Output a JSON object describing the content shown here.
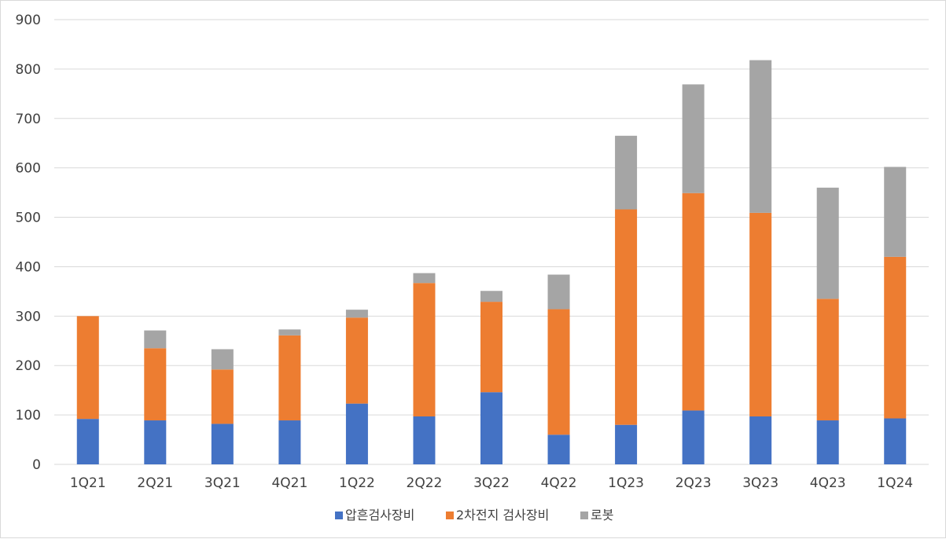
{
  "chart_data": {
    "type": "bar",
    "stacked": true,
    "categories": [
      "1Q21",
      "2Q21",
      "3Q21",
      "4Q21",
      "1Q22",
      "2Q22",
      "3Q22",
      "4Q22",
      "1Q23",
      "2Q23",
      "3Q23",
      "4Q23",
      "1Q24"
    ],
    "series": [
      {
        "name": "압흔검사장비",
        "color": "#4472c4",
        "values": [
          92,
          89,
          82,
          89,
          123,
          97,
          146,
          60,
          80,
          109,
          97,
          89,
          93
        ]
      },
      {
        "name": "2차전지 검사장비",
        "color": "#ed7d31",
        "values": [
          208,
          146,
          110,
          172,
          174,
          270,
          183,
          254,
          436,
          440,
          412,
          246,
          327
        ]
      },
      {
        "name": "로봇",
        "color": "#a5a5a5",
        "values": [
          0,
          36,
          41,
          12,
          16,
          20,
          22,
          70,
          149,
          220,
          309,
          225,
          182
        ]
      }
    ],
    "ylim": [
      0,
      900
    ],
    "yticks": [
      "0",
      "100",
      "200",
      "300",
      "400",
      "500",
      "600",
      "700",
      "800",
      "900"
    ],
    "title": "",
    "xlabel": "",
    "ylabel": "",
    "grid": true,
    "legend_position": "bottom"
  }
}
